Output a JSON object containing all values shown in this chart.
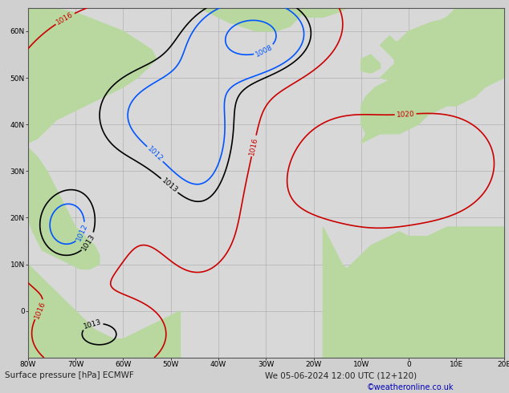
{
  "title_left": "Surface pressure [hPa] ECMWF",
  "title_right": "We 05-06-2024 12:00 UTC (12+120)",
  "credit": "©weatheronline.co.uk",
  "ocean_color": "#d8d8d8",
  "land_color": "#b8d8a0",
  "grid_color": "#999999",
  "bottom_bar_color": "#d0d0d0",
  "bottom_text_color": "#222222",
  "credit_color": "#0000bb",
  "contour_black_color": "#000000",
  "contour_blue_color": "#0055ff",
  "contour_red_color": "#cc0000",
  "figsize": [
    6.34,
    4.9
  ],
  "dpi": 100,
  "lon_min": -80,
  "lon_max": 20,
  "lat_min": -10,
  "lat_max": 65,
  "lon_ticks": [
    -80,
    -70,
    -60,
    -50,
    -40,
    -30,
    -20,
    -10,
    0,
    10,
    20
  ],
  "lat_ticks": [
    0,
    10,
    20,
    30,
    40,
    50,
    60
  ],
  "contour_linewidth": 1.2,
  "label_fontsize": 6.5
}
